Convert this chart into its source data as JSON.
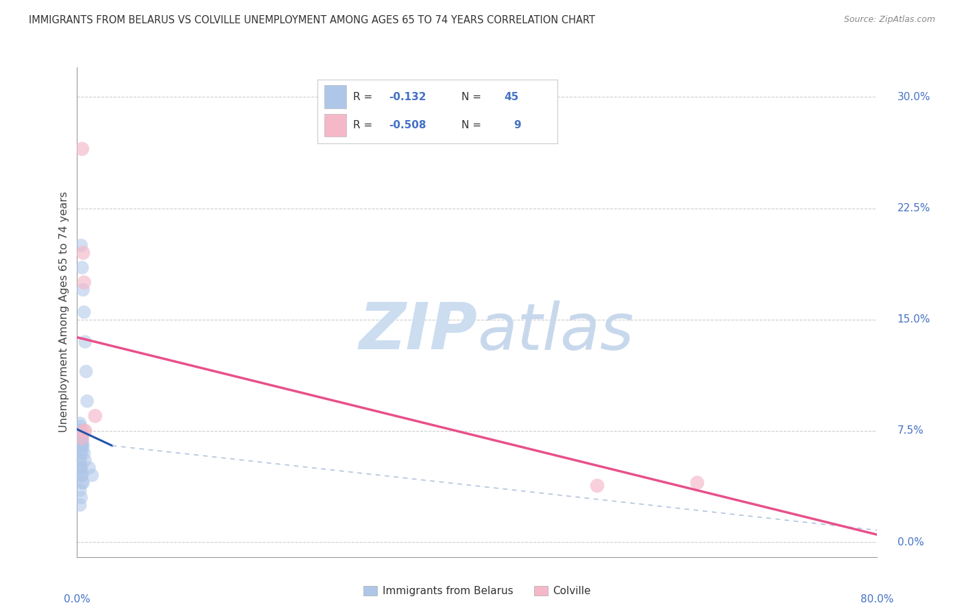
{
  "title": "IMMIGRANTS FROM BELARUS VS COLVILLE UNEMPLOYMENT AMONG AGES 65 TO 74 YEARS CORRELATION CHART",
  "source": "Source: ZipAtlas.com",
  "ylabel": "Unemployment Among Ages 65 to 74 years",
  "ytick_labels": [
    "0.0%",
    "7.5%",
    "15.0%",
    "22.5%",
    "30.0%"
  ],
  "ytick_values": [
    0.0,
    7.5,
    15.0,
    22.5,
    30.0
  ],
  "xlim": [
    0.0,
    80.0
  ],
  "ylim": [
    -1.0,
    32.0
  ],
  "legend_label1": "Immigrants from Belarus",
  "legend_label2": "Colville",
  "blue_color": "#aec6e8",
  "pink_color": "#f4b8c8",
  "blue_line_color": "#2255aa",
  "pink_line_color": "#e8508a",
  "blue_scatter_alpha": 0.55,
  "pink_scatter_alpha": 0.65,
  "watermark_color": "#ccddf0",
  "grid_color": "#cccccc",
  "title_color": "#333333",
  "axis_label_color": "#4472c4",
  "blue_dots_x": [
    0.4,
    0.5,
    0.6,
    0.7,
    0.8,
    0.9,
    1.0,
    0.3,
    0.4,
    0.5,
    0.3,
    0.4,
    0.5,
    0.3,
    0.4,
    0.3,
    0.4,
    0.3,
    0.4,
    0.5,
    0.6,
    0.7,
    0.8,
    1.2,
    1.5,
    0.3,
    0.4,
    0.5,
    0.3,
    0.4,
    0.5,
    0.6,
    0.3,
    0.4,
    0.3,
    0.4,
    0.3,
    0.4,
    0.5,
    0.3,
    0.4,
    0.5,
    0.3,
    0.4,
    0.3
  ],
  "blue_dots_y": [
    20.0,
    18.5,
    17.0,
    15.5,
    13.5,
    11.5,
    9.5,
    8.0,
    7.5,
    7.0,
    7.5,
    7.0,
    6.8,
    7.5,
    7.0,
    7.8,
    7.4,
    7.2,
    7.0,
    6.8,
    6.5,
    6.0,
    5.5,
    5.0,
    4.5,
    6.8,
    6.5,
    6.2,
    5.5,
    5.0,
    4.5,
    4.0,
    6.5,
    6.0,
    5.5,
    5.0,
    7.2,
    7.0,
    6.5,
    4.8,
    4.5,
    4.0,
    3.5,
    3.0,
    2.5
  ],
  "pink_dots_x": [
    0.5,
    0.6,
    0.7,
    1.8,
    0.8,
    0.5,
    52.0,
    62.0,
    0.7
  ],
  "pink_dots_y": [
    26.5,
    19.5,
    17.5,
    8.5,
    7.5,
    7.0,
    3.8,
    4.0,
    7.5
  ],
  "blue_line_x0": 0.0,
  "blue_line_y0": 7.6,
  "blue_line_x1": 3.5,
  "blue_line_y1": 6.5,
  "blue_dashed_x0": 3.5,
  "blue_dashed_y0": 6.5,
  "blue_dashed_x1": 80.0,
  "blue_dashed_y1": 0.8,
  "pink_line_x0": 0.0,
  "pink_line_y0": 13.8,
  "pink_line_x1": 80.0,
  "pink_line_y1": 0.5
}
